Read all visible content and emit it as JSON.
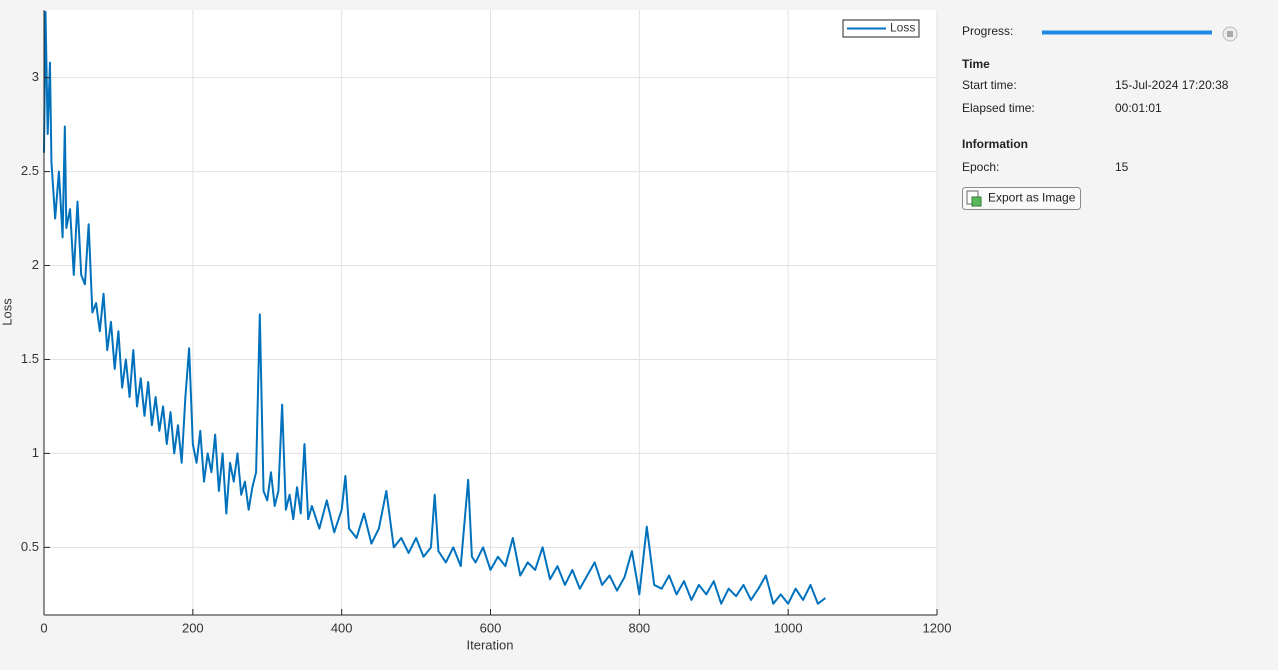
{
  "chart_data": {
    "type": "line",
    "xlabel": "Iteration",
    "ylabel": "Loss",
    "x": [
      0,
      2,
      5,
      8,
      10,
      15,
      20,
      25,
      28,
      30,
      35,
      40,
      45,
      50,
      55,
      60,
      65,
      70,
      75,
      80,
      85,
      90,
      95,
      100,
      105,
      110,
      115,
      120,
      125,
      130,
      135,
      140,
      145,
      150,
      155,
      160,
      165,
      170,
      175,
      180,
      185,
      190,
      195,
      200,
      205,
      210,
      215,
      220,
      225,
      230,
      235,
      240,
      245,
      250,
      255,
      260,
      265,
      270,
      275,
      280,
      285,
      290,
      295,
      300,
      305,
      310,
      315,
      320,
      325,
      330,
      335,
      340,
      345,
      350,
      355,
      360,
      370,
      380,
      390,
      400,
      405,
      410,
      420,
      430,
      440,
      450,
      460,
      470,
      480,
      490,
      500,
      510,
      520,
      525,
      530,
      540,
      550,
      560,
      570,
      575,
      580,
      590,
      600,
      610,
      620,
      630,
      640,
      650,
      660,
      670,
      680,
      690,
      700,
      710,
      720,
      730,
      740,
      750,
      760,
      770,
      780,
      790,
      800,
      810,
      820,
      830,
      840,
      850,
      860,
      870,
      880,
      890,
      900,
      910,
      920,
      930,
      940,
      950,
      960,
      970,
      980,
      990,
      1000,
      1010,
      1020,
      1030,
      1040,
      1050
    ],
    "series": [
      {
        "name": "Loss",
        "color": "#0072bd",
        "values": [
          2.6,
          3.35,
          2.7,
          3.08,
          2.55,
          2.25,
          2.5,
          2.15,
          2.74,
          2.2,
          2.3,
          1.95,
          2.34,
          1.95,
          1.9,
          2.22,
          1.75,
          1.8,
          1.65,
          1.85,
          1.55,
          1.7,
          1.45,
          1.65,
          1.35,
          1.5,
          1.3,
          1.55,
          1.25,
          1.4,
          1.2,
          1.38,
          1.15,
          1.3,
          1.12,
          1.25,
          1.05,
          1.22,
          1.0,
          1.15,
          0.95,
          1.3,
          1.56,
          1.05,
          0.95,
          1.12,
          0.85,
          1.0,
          0.9,
          1.1,
          0.8,
          1.0,
          0.68,
          0.95,
          0.85,
          1.0,
          0.78,
          0.85,
          0.7,
          0.82,
          0.9,
          1.74,
          0.8,
          0.75,
          0.9,
          0.72,
          0.8,
          1.26,
          0.7,
          0.78,
          0.65,
          0.82,
          0.68,
          1.05,
          0.65,
          0.72,
          0.6,
          0.75,
          0.58,
          0.7,
          0.88,
          0.6,
          0.55,
          0.68,
          0.52,
          0.6,
          0.8,
          0.5,
          0.55,
          0.47,
          0.55,
          0.45,
          0.5,
          0.78,
          0.48,
          0.42,
          0.5,
          0.4,
          0.86,
          0.45,
          0.42,
          0.5,
          0.38,
          0.45,
          0.4,
          0.55,
          0.35,
          0.42,
          0.38,
          0.5,
          0.33,
          0.4,
          0.3,
          0.38,
          0.28,
          0.35,
          0.42,
          0.3,
          0.35,
          0.27,
          0.34,
          0.48,
          0.25,
          0.61,
          0.3,
          0.28,
          0.35,
          0.25,
          0.32,
          0.22,
          0.3,
          0.25,
          0.32,
          0.2,
          0.28,
          0.24,
          0.3,
          0.22,
          0.28,
          0.35,
          0.2,
          0.25,
          0.2,
          0.28,
          0.22,
          0.3,
          0.2,
          0.23
        ]
      }
    ],
    "xlim": [
      0,
      1200
    ],
    "xticks": [
      0,
      200,
      400,
      600,
      800,
      1000,
      1200
    ],
    "ylim": [
      0.14,
      3.36
    ],
    "yticks": [
      0.5,
      1,
      1.5,
      2,
      2.5,
      3
    ],
    "grid": true,
    "legend": "northeast"
  },
  "panel": {
    "progress_label": "Progress:",
    "time": {
      "title": "Time",
      "start_label": "Start time:",
      "start_value": "15-Jul-2024 17:20:38",
      "elapsed_label": "Elapsed time:",
      "elapsed_value": "00:01:01"
    },
    "information": {
      "title": "Information",
      "epoch_label": "Epoch:",
      "epoch_value": "15"
    },
    "export_button": "Export as Image"
  }
}
